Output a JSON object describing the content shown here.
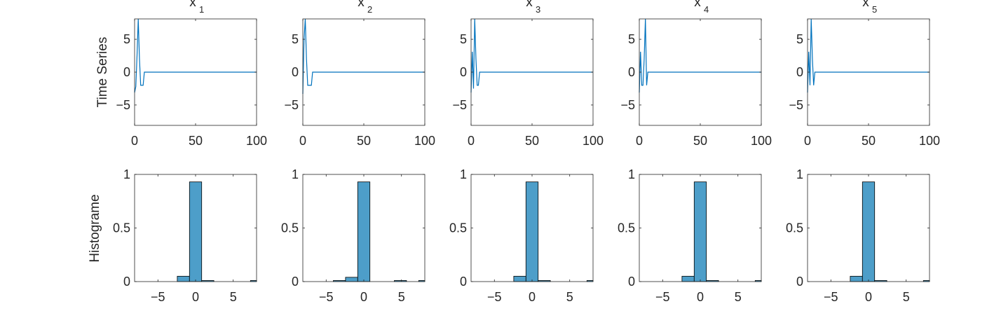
{
  "figure": {
    "row_labels": [
      "Time Series",
      "Histograme"
    ]
  },
  "chart_data": [
    {
      "type": "line",
      "panel": "x_1",
      "title_base": "x",
      "title_sub": "1",
      "xlim": [
        0,
        100
      ],
      "ylim": [
        -8.1,
        8.1
      ],
      "xticks": [
        0,
        50,
        100
      ],
      "yticks": [
        -5,
        0,
        5
      ],
      "ylabel": "Time Series",
      "color": "#0072bd",
      "x": [
        0,
        1,
        2,
        3,
        4,
        5,
        6,
        7,
        8,
        9,
        10,
        100
      ],
      "y": [
        -3.1,
        -2.2,
        2.5,
        8.1,
        2.0,
        -2.0,
        -2.0,
        -2.0,
        0,
        0,
        0,
        0
      ]
    },
    {
      "type": "line",
      "panel": "x_2",
      "title_base": "x",
      "title_sub": "2",
      "xlim": [
        0,
        100
      ],
      "ylim": [
        -8.1,
        8.1
      ],
      "xticks": [
        0,
        50,
        100
      ],
      "yticks": [
        -5,
        0,
        5
      ],
      "color": "#0072bd",
      "x": [
        0,
        1,
        2,
        3,
        4,
        5,
        6,
        7,
        8,
        9,
        10,
        100
      ],
      "y": [
        -3.3,
        5.0,
        8.1,
        2.0,
        -2.0,
        -2.0,
        -2.0,
        -2.0,
        0,
        0,
        0,
        0
      ]
    },
    {
      "type": "line",
      "panel": "x_3",
      "title_base": "x",
      "title_sub": "3",
      "xlim": [
        0,
        100
      ],
      "ylim": [
        -8.1,
        8.1
      ],
      "xticks": [
        0,
        50,
        100
      ],
      "yticks": [
        -5,
        0,
        5
      ],
      "color": "#0072bd",
      "x": [
        0,
        1,
        2,
        3,
        4,
        5,
        6,
        7,
        8,
        9,
        10,
        100
      ],
      "y": [
        -3.1,
        3.1,
        -2.5,
        8.1,
        2.0,
        -2.0,
        -2.0,
        0,
        0,
        0,
        0,
        0
      ]
    },
    {
      "type": "line",
      "panel": "x_4",
      "title_base": "x",
      "title_sub": "4",
      "xlim": [
        0,
        100
      ],
      "ylim": [
        -8.1,
        8.1
      ],
      "xticks": [
        0,
        50,
        100
      ],
      "yticks": [
        -5,
        0,
        5
      ],
      "color": "#0072bd",
      "x": [
        0,
        1,
        2,
        3,
        4,
        5,
        6,
        7,
        8,
        9,
        10,
        100
      ],
      "y": [
        -3.1,
        3.1,
        -2.0,
        -2.0,
        2.0,
        8.1,
        -2.0,
        0,
        0,
        0,
        0,
        0
      ]
    },
    {
      "type": "line",
      "panel": "x_5",
      "title_base": "x",
      "title_sub": "5",
      "xlim": [
        0,
        100
      ],
      "ylim": [
        -8.1,
        8.1
      ],
      "xticks": [
        0,
        50,
        100
      ],
      "yticks": [
        -5,
        0,
        5
      ],
      "color": "#0072bd",
      "x": [
        0,
        1,
        2,
        3,
        4,
        5,
        6,
        7,
        8,
        9,
        10,
        100
      ],
      "y": [
        -3.1,
        3.1,
        -2.0,
        8.1,
        2.0,
        -2.0,
        0,
        0,
        0,
        0,
        0,
        0
      ]
    },
    {
      "type": "bar",
      "panel": "x_1",
      "xlim": [
        -8.1,
        8.1
      ],
      "ylim": [
        0,
        1
      ],
      "xticks": [
        -5,
        0,
        5
      ],
      "yticks": [
        0,
        0.5,
        1
      ],
      "ylabel": "Histograme",
      "bin_width": 1.62,
      "color": "#4d9ec9",
      "bin_centers": [
        -6.48,
        -4.86,
        -3.24,
        -1.62,
        0,
        1.62,
        3.24,
        4.86,
        6.48,
        8.1
      ],
      "values": [
        0,
        0,
        0,
        0.05,
        0.93,
        0.01,
        0,
        0,
        0,
        0.01
      ]
    },
    {
      "type": "bar",
      "panel": "x_2",
      "xlim": [
        -8.1,
        8.1
      ],
      "ylim": [
        0,
        1
      ],
      "xticks": [
        -5,
        0,
        5
      ],
      "yticks": [
        0,
        0.5,
        1
      ],
      "bin_width": 1.62,
      "color": "#4d9ec9",
      "bin_centers": [
        -6.48,
        -4.86,
        -3.24,
        -1.62,
        0,
        1.62,
        3.24,
        4.86,
        6.48,
        8.1
      ],
      "values": [
        0,
        0,
        0.01,
        0.04,
        0.93,
        0,
        0,
        0.01,
        0,
        0.01
      ]
    },
    {
      "type": "bar",
      "panel": "x_3",
      "xlim": [
        -8.1,
        8.1
      ],
      "ylim": [
        0,
        1
      ],
      "xticks": [
        -5,
        0,
        5
      ],
      "yticks": [
        0,
        0.5,
        1
      ],
      "bin_width": 1.62,
      "color": "#4d9ec9",
      "bin_centers": [
        -6.48,
        -4.86,
        -3.24,
        -1.62,
        0,
        1.62,
        3.24,
        4.86,
        6.48,
        8.1
      ],
      "values": [
        0,
        0,
        0,
        0.05,
        0.93,
        0.01,
        0,
        0,
        0,
        0.01
      ]
    },
    {
      "type": "bar",
      "panel": "x_4",
      "xlim": [
        -8.1,
        8.1
      ],
      "ylim": [
        0,
        1
      ],
      "xticks": [
        -5,
        0,
        5
      ],
      "yticks": [
        0,
        0.5,
        1
      ],
      "bin_width": 1.62,
      "color": "#4d9ec9",
      "bin_centers": [
        -6.48,
        -4.86,
        -3.24,
        -1.62,
        0,
        1.62,
        3.24,
        4.86,
        6.48,
        8.1
      ],
      "values": [
        0,
        0,
        0,
        0.05,
        0.93,
        0.01,
        0,
        0,
        0,
        0.01
      ]
    },
    {
      "type": "bar",
      "panel": "x_5",
      "xlim": [
        -8.1,
        8.1
      ],
      "ylim": [
        0,
        1
      ],
      "xticks": [
        -5,
        0,
        5
      ],
      "yticks": [
        0,
        0.5,
        1
      ],
      "bin_width": 1.62,
      "color": "#4d9ec9",
      "bin_centers": [
        -6.48,
        -4.86,
        -3.24,
        -1.62,
        0,
        1.62,
        3.24,
        4.86,
        6.48,
        8.1
      ],
      "values": [
        0,
        0,
        0,
        0.05,
        0.93,
        0.01,
        0,
        0,
        0,
        0.01
      ]
    }
  ]
}
